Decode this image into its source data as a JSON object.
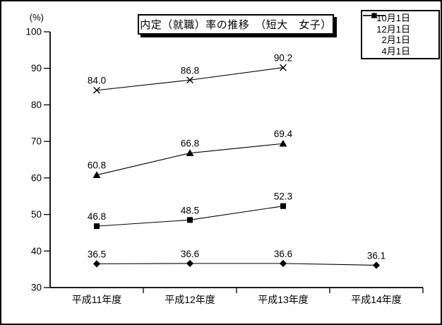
{
  "chart_data": {
    "type": "line",
    "title": "内定（就職）率の推移　（短大　女子）",
    "ylabel": "(%)",
    "categories": [
      "平成11年度",
      "平成12年度",
      "平成13年度",
      "平成14年度"
    ],
    "series": [
      {
        "name": "10月1日",
        "marker": "diamond",
        "values": [
          36.5,
          36.6,
          36.6,
          36.1
        ]
      },
      {
        "name": "12月1日",
        "marker": "square",
        "values": [
          46.8,
          48.5,
          52.3,
          null
        ]
      },
      {
        "name": "2月1日",
        "marker": "triangle",
        "values": [
          60.8,
          66.8,
          69.4,
          null
        ]
      },
      {
        "name": "4月1日",
        "marker": "x",
        "values": [
          84.0,
          86.8,
          90.2,
          null
        ]
      }
    ],
    "ylim": [
      30,
      100
    ],
    "yticks": [
      30,
      40,
      50,
      60,
      70,
      80,
      90,
      100
    ],
    "value_label_decimals": 1,
    "grid": false,
    "legend_position": "top-right",
    "colors": {
      "line": "#000000",
      "text": "#000000",
      "background": "#ffffff",
      "border": "#000000"
    }
  }
}
